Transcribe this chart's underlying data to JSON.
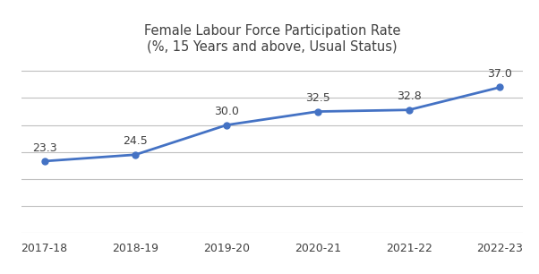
{
  "title_line1": "Female Labour Force Participation Rate",
  "title_line2": "(%, 15 Years and above, Usual Status)",
  "categories": [
    "2017-18",
    "2018-19",
    "2019-20",
    "2020-21",
    "2021-22",
    "2022-23"
  ],
  "values": [
    23.3,
    24.5,
    30.0,
    32.5,
    32.8,
    37.0
  ],
  "line_color": "#4472C4",
  "marker_color": "#4472C4",
  "background_color": "#FFFFFF",
  "grid_color": "#BFBFBF",
  "text_color": "#404040",
  "ylim": [
    10,
    42
  ],
  "yticks": [
    10,
    15,
    20,
    25,
    30,
    35,
    40
  ],
  "title_fontsize": 10.5,
  "tick_fontsize": 9,
  "annotation_fontsize": 9,
  "line_width": 2.0,
  "marker_size": 5
}
